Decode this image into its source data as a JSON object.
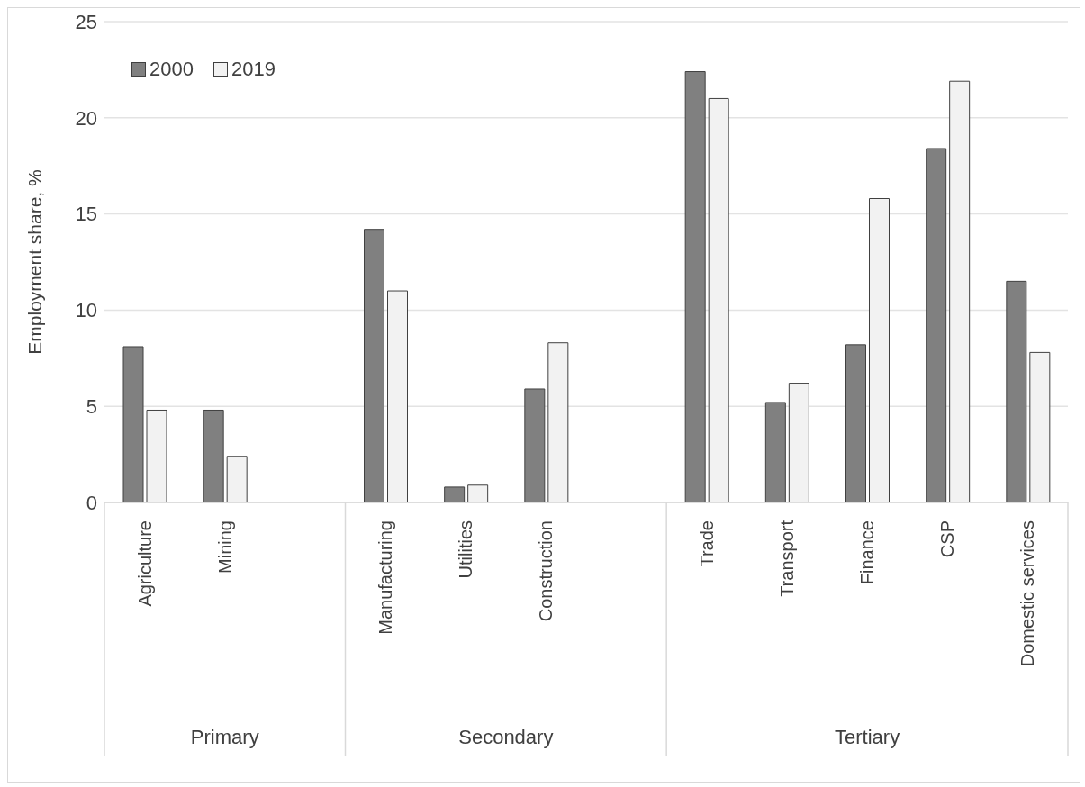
{
  "chart_data": {
    "type": "bar",
    "ylabel": "Employment share, %",
    "categories": [
      "Agriculture",
      "Mining",
      null,
      "Manufacturing",
      "Utilities",
      "Construction",
      null,
      "Trade",
      "Transport",
      "Finance",
      "CSP",
      "Domestic services"
    ],
    "series": [
      {
        "name": "2000",
        "color": "#808080",
        "values": [
          8.1,
          4.8,
          null,
          14.2,
          0.8,
          5.9,
          null,
          22.4,
          5.2,
          8.2,
          18.4,
          11.5
        ]
      },
      {
        "name": "2019",
        "color": "#f2f2f2",
        "values": [
          4.8,
          2.4,
          null,
          11.0,
          0.9,
          8.3,
          null,
          21.0,
          6.2,
          15.8,
          21.9,
          7.8
        ]
      }
    ],
    "ylim": [
      0,
      25
    ],
    "yticks": [
      0,
      5,
      10,
      15,
      20,
      25
    ],
    "grid": "y",
    "legend": "top left",
    "annotations": [
      "Primary",
      "Secondary",
      "Tertiary"
    ]
  }
}
